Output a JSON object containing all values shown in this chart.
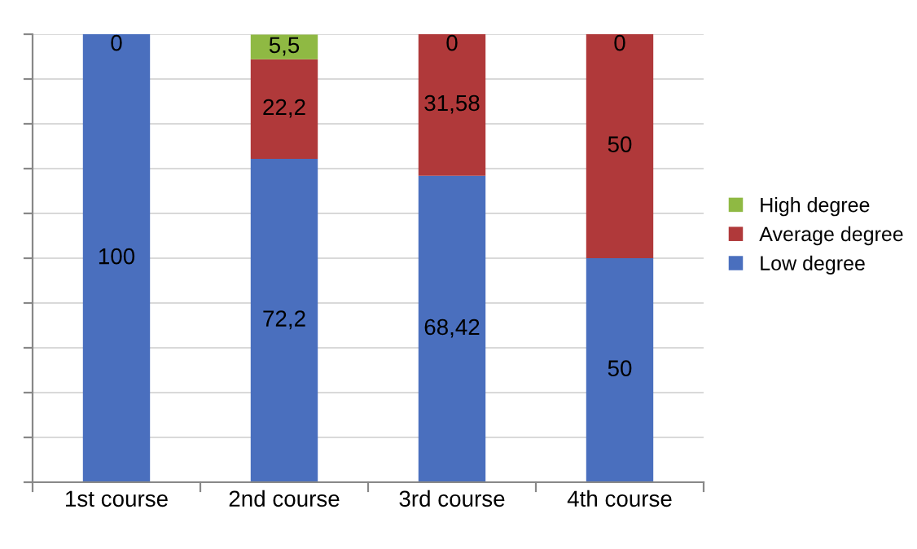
{
  "chart_data": {
    "type": "bar",
    "stacked": true,
    "categories": [
      "1st course",
      "2nd course",
      "3rd course",
      "4th course"
    ],
    "series": [
      {
        "name": "Low degree",
        "color": "#4a6fbe",
        "values": [
          100,
          72.2,
          68.42,
          50
        ],
        "value_labels": [
          "100",
          "72,2",
          "68,42",
          "50"
        ]
      },
      {
        "name": "Average degree",
        "color": "#b0393a",
        "values": [
          0,
          22.2,
          31.58,
          50
        ],
        "value_labels": [
          null,
          "22,2",
          "31,58",
          "50"
        ]
      },
      {
        "name": "High degree",
        "color": "#8fb943",
        "values": [
          0,
          5.5,
          0,
          0
        ],
        "value_labels": [
          "0",
          "5,5",
          "0",
          "0"
        ]
      }
    ],
    "ylim": [
      0,
      100
    ],
    "yticks": [
      {
        "value": 0,
        "label": null
      },
      {
        "value": 10,
        "label": null
      },
      {
        "value": 20,
        "label": null
      },
      {
        "value": 30,
        "label": null
      },
      {
        "value": 40,
        "label": null
      },
      {
        "value": 50,
        "label": null
      },
      {
        "value": 60,
        "label": null
      },
      {
        "value": 70,
        "label": null
      },
      {
        "value": 80,
        "label": null
      },
      {
        "value": 90,
        "label": null
      },
      {
        "value": 100,
        "label": null
      }
    ],
    "tick_labels": "x",
    "grid": "y",
    "legend": "right"
  }
}
